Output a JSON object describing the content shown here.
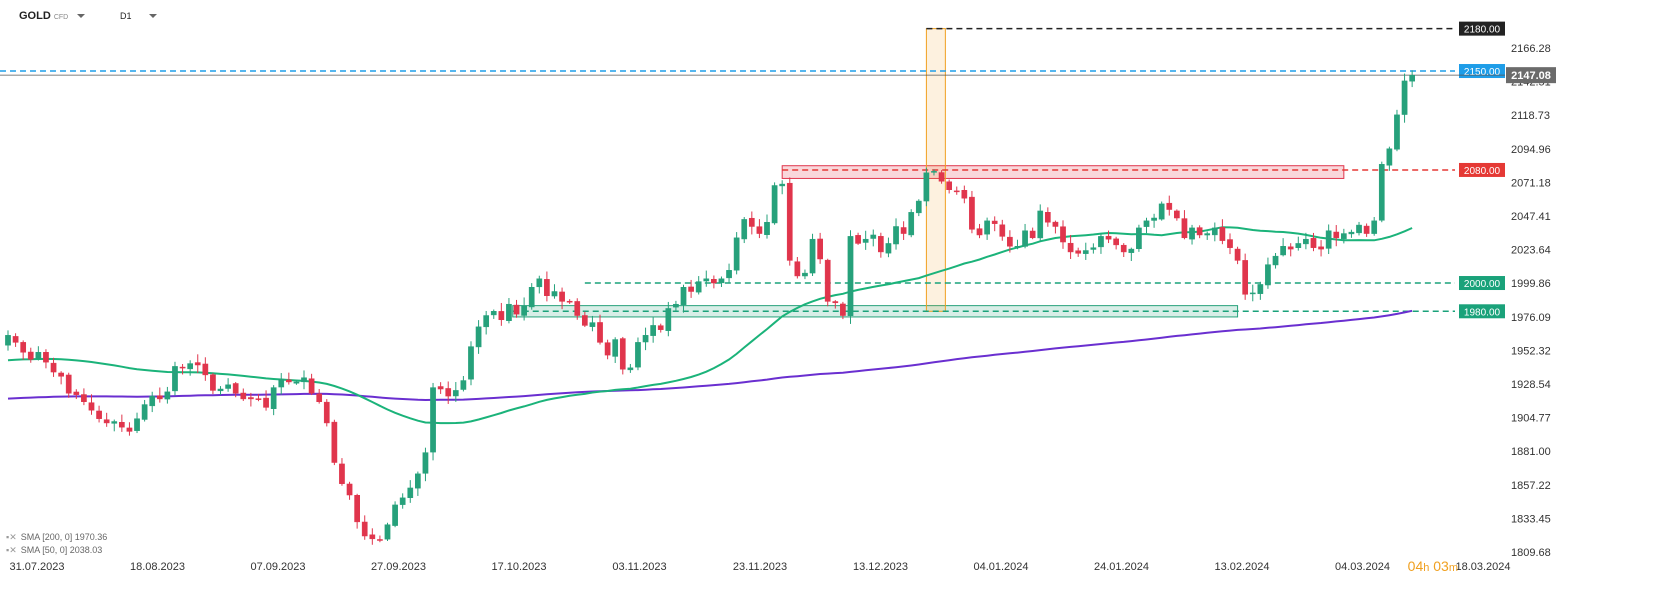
{
  "header": {
    "symbol": "GOLD",
    "symbol_suffix": "CFD",
    "timeframe": "D1"
  },
  "legend": {
    "sma200": "SMA [200, 0] 1970.36",
    "sma50": "SMA [50, 0] 2038.03"
  },
  "timer": {
    "h": "04",
    "h_unit": "h",
    "m": "03",
    "m_unit": "m"
  },
  "colors": {
    "up": "#26a17b",
    "down": "#e0354c",
    "sma50": "#1bb37a",
    "sma200": "#6a2fd0",
    "level_2180": "#222222",
    "level_2150": "#1e9de8",
    "level_2080": "#e53935",
    "level_2000": "#1aa27a"
  },
  "chart_data": {
    "type": "candlestick",
    "title": "GOLD",
    "ylim": [
      1800,
      2182
    ],
    "y_ticks": [
      "2166.28",
      "2142.51",
      "2118.73",
      "2094.96",
      "2071.18",
      "2047.41",
      "2023.64",
      "1999.86",
      "1976.09",
      "1952.32",
      "1928.54",
      "1904.77",
      "1881.00",
      "1857.22",
      "1833.45",
      "1809.68"
    ],
    "x_ticks": [
      "31.07.2023",
      "18.08.2023",
      "07.09.2023",
      "27.09.2023",
      "17.10.2023",
      "03.11.2023",
      "23.11.2023",
      "13.12.2023",
      "04.01.2024",
      "24.01.2024",
      "13.02.2024",
      "04.03.2024",
      "18.03.2024"
    ],
    "levels": [
      {
        "label": "2180.00",
        "value": 2180,
        "color": "#222222"
      },
      {
        "label": "2150.00",
        "value": 2150,
        "color": "#1e9de8"
      },
      {
        "label": "2080.00",
        "value": 2080,
        "color": "#e53935"
      },
      {
        "label": "2000.00",
        "value": 2000,
        "color": "#1aa27a"
      },
      {
        "label": "1980.00",
        "value": 1980,
        "color": "#1aa27a"
      }
    ],
    "current_price": "2147.08",
    "closes": [
      1963,
      1958,
      1951,
      1946,
      1951,
      1944,
      1937,
      1934,
      1922,
      1921,
      1916,
      1910,
      1904,
      1901,
      1902,
      1898,
      1895,
      1904,
      1914,
      1920,
      1918,
      1923,
      1941,
      1940,
      1943,
      1942,
      1935,
      1924,
      1925,
      1928,
      1922,
      1918,
      1918,
      1918,
      1912,
      1926,
      1932,
      1930,
      1930,
      1933,
      1922,
      1916,
      1901,
      1873,
      1858,
      1850,
      1831,
      1821,
      1819,
      1818,
      1829,
      1843,
      1848,
      1855,
      1865,
      1880,
      1926,
      1925,
      1920,
      1924,
      1931,
      1955,
      1969,
      1977,
      1980,
      1974,
      1985,
      1978,
      1984,
      1997,
      2003,
      1991,
      1994,
      1987,
      1987,
      1977,
      1970,
      1972,
      1958,
      1949,
      1960,
      1939,
      1940,
      1958,
      1963,
      1970,
      1967,
      1982,
      1985,
      1997,
      1994,
      2001,
      2003,
      2000,
      2003,
      2009,
      2032,
      2045,
      2040,
      2035,
      2043,
      2069,
      2070,
      2016,
      2005,
      2007,
      2031,
      2017,
      1987,
      1986,
      1977,
      2033,
      2028,
      2031,
      2034,
      2022,
      2028,
      2040,
      2035,
      2050,
      2058,
      2078,
      2079,
      2072,
      2066,
      2065,
      2060,
      2038,
      2034,
      2044,
      2042,
      2033,
      2026,
      2026,
      2037,
      2032,
      2051,
      2043,
      2040,
      2029,
      2022,
      2021,
      2023,
      2025,
      2033,
      2031,
      2027,
      2022,
      2024,
      2039,
      2044,
      2046,
      2056,
      2052,
      2046,
      2032,
      2039,
      2034,
      2035,
      2039,
      2030,
      2025,
      2016,
      1992,
      1993,
      1999,
      2013,
      2019,
      2026,
      2024,
      2028,
      2031,
      2025,
      2024,
      2037,
      2032,
      2035,
      2036,
      2041,
      2035,
      2044,
      2084,
      2095,
      2119,
      2143,
      2147
    ]
  }
}
